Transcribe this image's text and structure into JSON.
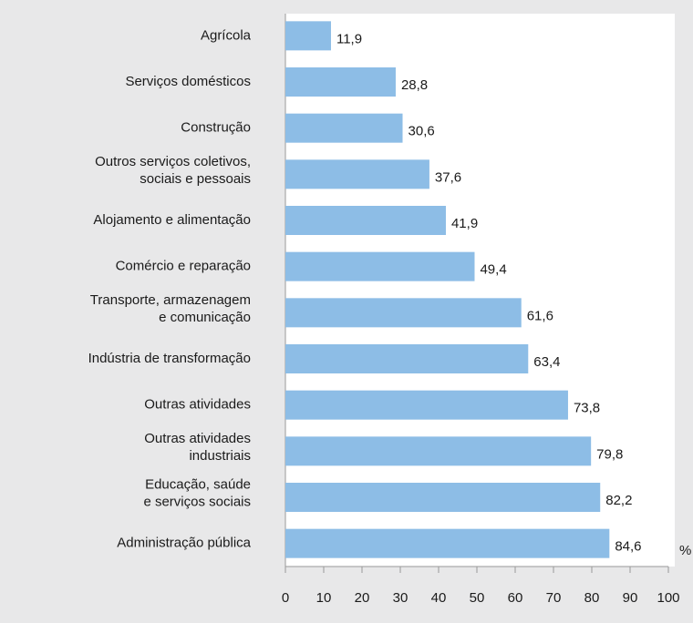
{
  "chart_data": {
    "type": "barh",
    "categories": [
      [
        "Agrícola"
      ],
      [
        "Serviços domésticos"
      ],
      [
        "Construção"
      ],
      [
        "Outros serviços coletivos,",
        "sociais e pessoais"
      ],
      [
        "Alojamento e alimentação"
      ],
      [
        "Comércio e reparação"
      ],
      [
        "Transporte, armazenagem",
        "e comunicação"
      ],
      [
        "Indústria de transformação"
      ],
      [
        "Outras atividades"
      ],
      [
        "Outras atividades",
        "industriais"
      ],
      [
        "Educação, saúde",
        "e serviços sociais"
      ],
      [
        "Administração pública"
      ]
    ],
    "values": [
      11.9,
      28.8,
      30.6,
      37.6,
      41.9,
      49.4,
      61.6,
      63.4,
      73.8,
      79.8,
      82.2,
      84.6
    ],
    "value_labels": [
      "11,9",
      "28,8",
      "30,6",
      "37,6",
      "41,9",
      "49,4",
      "61,6",
      "63,4",
      "73,8",
      "79,8",
      "82,2",
      "84,6"
    ],
    "color": "#8dbde6",
    "xlim": [
      0,
      100
    ],
    "xticks": [
      0,
      10,
      20,
      30,
      40,
      50,
      60,
      70,
      80,
      90,
      100
    ],
    "xlabel": "%"
  }
}
